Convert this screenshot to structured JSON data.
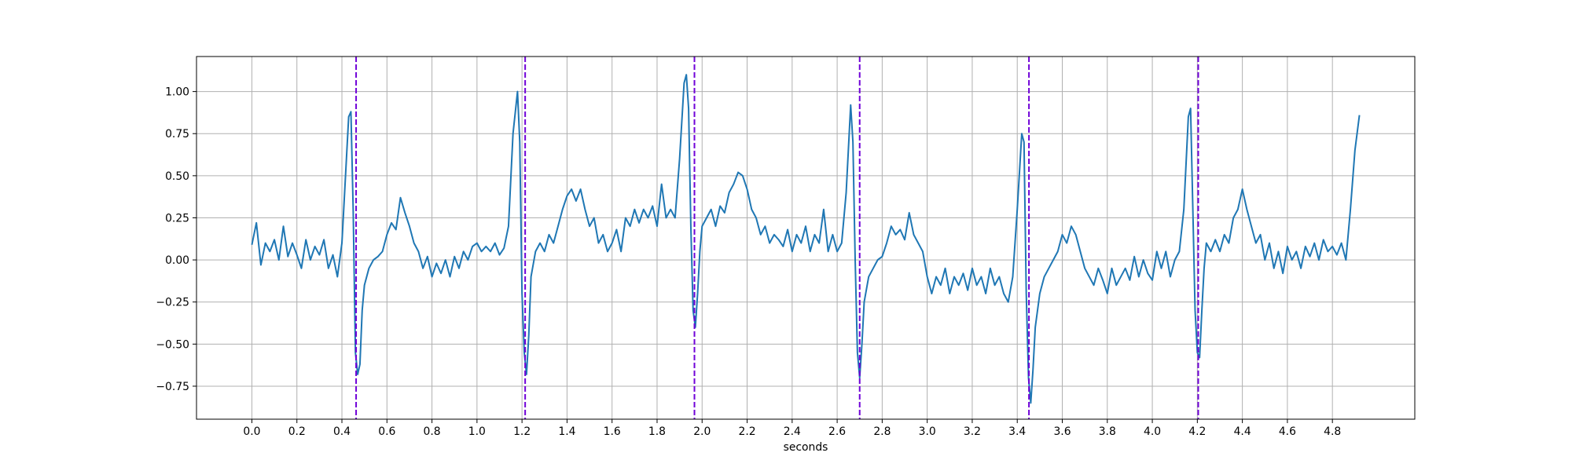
{
  "chart_data": {
    "type": "line",
    "xlabel": "seconds",
    "series": [
      {
        "color": "#1f77b4",
        "x": [
          0.0,
          0.02,
          0.04,
          0.06,
          0.08,
          0.1,
          0.12,
          0.14,
          0.16,
          0.18,
          0.2,
          0.22,
          0.24,
          0.26,
          0.28,
          0.3,
          0.32,
          0.34,
          0.36,
          0.38,
          0.4,
          0.42,
          0.43,
          0.44,
          0.45,
          0.46,
          0.47,
          0.48,
          0.49,
          0.5,
          0.52,
          0.54,
          0.56,
          0.58,
          0.6,
          0.62,
          0.64,
          0.66,
          0.68,
          0.7,
          0.72,
          0.74,
          0.76,
          0.78,
          0.8,
          0.82,
          0.84,
          0.86,
          0.88,
          0.9,
          0.92,
          0.94,
          0.96,
          0.98,
          1.0,
          1.02,
          1.04,
          1.06,
          1.08,
          1.1,
          1.12,
          1.14,
          1.16,
          1.18,
          1.19,
          1.2,
          1.21,
          1.22,
          1.23,
          1.24,
          1.26,
          1.28,
          1.3,
          1.32,
          1.34,
          1.36,
          1.38,
          1.4,
          1.42,
          1.44,
          1.46,
          1.48,
          1.5,
          1.52,
          1.54,
          1.56,
          1.58,
          1.6,
          1.62,
          1.64,
          1.66,
          1.68,
          1.7,
          1.72,
          1.74,
          1.76,
          1.78,
          1.8,
          1.82,
          1.84,
          1.86,
          1.88,
          1.9,
          1.92,
          1.93,
          1.94,
          1.95,
          1.96,
          1.97,
          1.98,
          1.99,
          2.0,
          2.02,
          2.04,
          2.06,
          2.08,
          2.1,
          2.12,
          2.14,
          2.16,
          2.18,
          2.2,
          2.22,
          2.24,
          2.26,
          2.28,
          2.3,
          2.32,
          2.34,
          2.36,
          2.38,
          2.4,
          2.42,
          2.44,
          2.46,
          2.48,
          2.5,
          2.52,
          2.54,
          2.56,
          2.58,
          2.6,
          2.62,
          2.64,
          2.66,
          2.67,
          2.68,
          2.69,
          2.7,
          2.71,
          2.72,
          2.74,
          2.76,
          2.78,
          2.8,
          2.82,
          2.84,
          2.86,
          2.88,
          2.9,
          2.92,
          2.94,
          2.96,
          2.98,
          3.0,
          3.02,
          3.04,
          3.06,
          3.08,
          3.1,
          3.12,
          3.14,
          3.16,
          3.18,
          3.2,
          3.22,
          3.24,
          3.26,
          3.28,
          3.3,
          3.32,
          3.34,
          3.36,
          3.38,
          3.4,
          3.42,
          3.43,
          3.44,
          3.45,
          3.46,
          3.47,
          3.48,
          3.5,
          3.52,
          3.54,
          3.56,
          3.58,
          3.6,
          3.62,
          3.64,
          3.66,
          3.68,
          3.7,
          3.72,
          3.74,
          3.76,
          3.78,
          3.8,
          3.82,
          3.84,
          3.86,
          3.88,
          3.9,
          3.92,
          3.94,
          3.96,
          3.98,
          4.0,
          4.02,
          4.04,
          4.06,
          4.08,
          4.1,
          4.12,
          4.14,
          4.16,
          4.17,
          4.18,
          4.19,
          4.2,
          4.21,
          4.22,
          4.23,
          4.24,
          4.26,
          4.28,
          4.3,
          4.32,
          4.34,
          4.36,
          4.38,
          4.4,
          4.42,
          4.44,
          4.46,
          4.48,
          4.5,
          4.52,
          4.54,
          4.56,
          4.58,
          4.6,
          4.62,
          4.64,
          4.66,
          4.68,
          4.7,
          4.72,
          4.74,
          4.76,
          4.78,
          4.8,
          4.82,
          4.84,
          4.86,
          4.88,
          4.9,
          4.92
        ],
        "values": [
          0.09,
          0.22,
          -0.03,
          0.1,
          0.05,
          0.12,
          0.0,
          0.2,
          0.02,
          0.1,
          0.03,
          -0.05,
          0.12,
          0.0,
          0.08,
          0.03,
          0.12,
          -0.05,
          0.03,
          -0.1,
          0.1,
          0.6,
          0.85,
          0.88,
          0.3,
          -0.55,
          -0.68,
          -0.62,
          -0.3,
          -0.15,
          -0.05,
          0.0,
          0.02,
          0.05,
          0.15,
          0.22,
          0.18,
          0.37,
          0.28,
          0.2,
          0.1,
          0.05,
          -0.05,
          0.02,
          -0.1,
          -0.02,
          -0.08,
          0.0,
          -0.1,
          0.02,
          -0.05,
          0.05,
          0.0,
          0.08,
          0.1,
          0.05,
          0.08,
          0.05,
          0.1,
          0.03,
          0.07,
          0.2,
          0.75,
          1.0,
          0.7,
          -0.2,
          -0.55,
          -0.68,
          -0.45,
          -0.1,
          0.05,
          0.1,
          0.05,
          0.15,
          0.1,
          0.2,
          0.3,
          0.38,
          0.42,
          0.35,
          0.42,
          0.3,
          0.2,
          0.25,
          0.1,
          0.15,
          0.05,
          0.1,
          0.18,
          0.05,
          0.25,
          0.2,
          0.3,
          0.22,
          0.3,
          0.25,
          0.32,
          0.2,
          0.45,
          0.25,
          0.3,
          0.25,
          0.6,
          1.05,
          1.1,
          0.9,
          0.2,
          -0.3,
          -0.4,
          -0.2,
          0.05,
          0.2,
          0.25,
          0.3,
          0.2,
          0.32,
          0.28,
          0.4,
          0.45,
          0.52,
          0.5,
          0.42,
          0.3,
          0.25,
          0.15,
          0.2,
          0.1,
          0.15,
          0.12,
          0.08,
          0.18,
          0.05,
          0.15,
          0.1,
          0.2,
          0.05,
          0.15,
          0.1,
          0.3,
          0.05,
          0.15,
          0.05,
          0.1,
          0.4,
          0.92,
          0.7,
          0.0,
          -0.55,
          -0.7,
          -0.5,
          -0.25,
          -0.1,
          -0.05,
          0.0,
          0.02,
          0.1,
          0.2,
          0.15,
          0.18,
          0.12,
          0.28,
          0.15,
          0.1,
          0.05,
          -0.1,
          -0.2,
          -0.1,
          -0.15,
          -0.05,
          -0.2,
          -0.1,
          -0.15,
          -0.08,
          -0.18,
          -0.05,
          -0.15,
          -0.1,
          -0.2,
          -0.05,
          -0.15,
          -0.1,
          -0.2,
          -0.25,
          -0.1,
          0.3,
          0.75,
          0.7,
          -0.2,
          -0.7,
          -0.85,
          -0.65,
          -0.4,
          -0.2,
          -0.1,
          -0.05,
          0.0,
          0.05,
          0.15,
          0.1,
          0.2,
          0.15,
          0.05,
          -0.05,
          -0.1,
          -0.15,
          -0.05,
          -0.12,
          -0.2,
          -0.05,
          -0.15,
          -0.1,
          -0.05,
          -0.12,
          0.02,
          -0.1,
          0.0,
          -0.08,
          -0.12,
          0.05,
          -0.05,
          0.05,
          -0.1,
          0.0,
          0.05,
          0.3,
          0.85,
          0.9,
          0.3,
          -0.3,
          -0.55,
          -0.58,
          -0.3,
          -0.05,
          0.1,
          0.05,
          0.12,
          0.05,
          0.15,
          0.1,
          0.25,
          0.3,
          0.42,
          0.3,
          0.2,
          0.1,
          0.15,
          0.0,
          0.1,
          -0.05,
          0.05,
          -0.08,
          0.08,
          0.0,
          0.05,
          -0.05,
          0.08,
          0.02,
          0.1,
          0.0,
          0.12,
          0.05,
          0.08,
          0.03,
          0.1,
          0.0,
          0.3,
          0.65,
          0.86
        ]
      }
    ],
    "vlines": {
      "color": "#7000d8",
      "x": [
        0.463,
        1.214,
        1.966,
        2.7,
        3.452,
        4.204
      ]
    },
    "xlim": [
      -0.246,
      5.166
    ],
    "xticks": [
      {
        "value": 0,
        "label": "0.0"
      },
      0.2,
      0.4,
      0.6,
      0.8,
      {
        "value": 1,
        "label": "1.0"
      },
      1.2,
      1.4,
      1.6,
      1.8,
      {
        "value": 2,
        "label": "2.0"
      },
      2.2,
      2.4,
      2.6,
      2.8,
      {
        "value": 3,
        "label": "3.0"
      },
      3.2,
      3.4,
      3.6,
      3.8,
      {
        "value": 4,
        "label": "4.0"
      },
      4.2,
      4.4,
      4.6,
      4.8
    ],
    "ylim": [
      -0.946,
      1.208
    ],
    "yticks": [
      {
        "value": -0.75,
        "label": "−0.75"
      },
      {
        "value": -0.5,
        "label": "−0.50"
      },
      {
        "value": -0.25,
        "label": "−0.25"
      },
      {
        "value": 0,
        "label": "0.00"
      },
      {
        "value": 0.25,
        "label": "0.25"
      },
      {
        "value": 0.5,
        "label": "0.50"
      },
      {
        "value": 0.75,
        "label": "0.75"
      },
      {
        "value": 1,
        "label": "1.00"
      }
    ],
    "grid": true
  }
}
